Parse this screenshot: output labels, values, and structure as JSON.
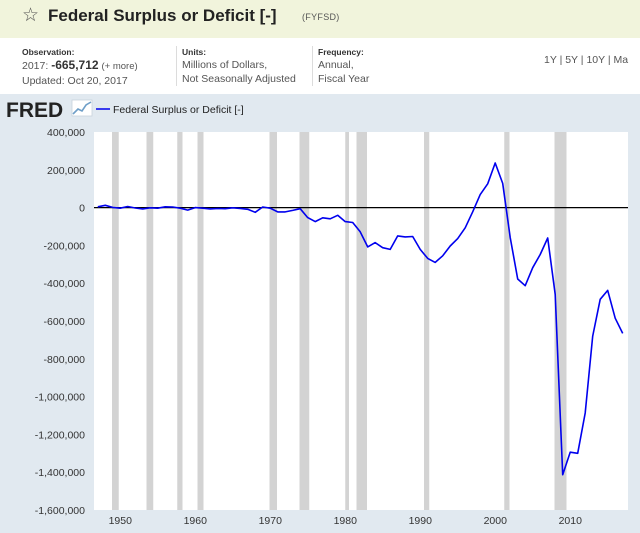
{
  "header": {
    "title": "Federal Surplus or Deficit [-]",
    "series_id": "(FYFSD)"
  },
  "meta": {
    "observation": {
      "label": "Observation:",
      "date": "2017:",
      "value": "-665,712",
      "more": "(+ more)",
      "updated": "Updated: Oct 20, 2017"
    },
    "units": {
      "label": "Units:",
      "line1": "Millions of Dollars,",
      "line2": "Not Seasonally Adjusted"
    },
    "frequency": {
      "label": "Frequency:",
      "line1": "Annual,",
      "line2": "Fiscal Year"
    },
    "ranges": [
      "1Y",
      "5Y",
      "10Y",
      "Ma"
    ]
  },
  "chart": {
    "logo": "FRED",
    "legend_label": "Federal Surplus or Deficit [-]"
  },
  "chart_data": {
    "type": "line",
    "title": "Federal Surplus or Deficit [-]",
    "xlabel": "",
    "ylabel": "",
    "x_range": [
      1946.5,
      2017.7
    ],
    "ylim": [
      -1600000,
      400000
    ],
    "y_ticks": [
      400000,
      200000,
      0,
      -200000,
      -400000,
      -600000,
      -800000,
      -1000000,
      -1200000,
      -1400000,
      -1600000
    ],
    "y_tick_labels": [
      "400,000",
      "200,000",
      "0",
      "-200,000",
      "-400,000",
      "-600,000",
      "-800,000",
      "-1,000,000",
      "-1,200,000",
      "-1,400,000",
      "-1,600,000"
    ],
    "x_ticks": [
      1950,
      1960,
      1970,
      1980,
      1990,
      2000,
      2010
    ],
    "x_tick_labels": [
      "1950",
      "1960",
      "1970",
      "1980",
      "1990",
      "2000",
      "2010"
    ],
    "grid": false,
    "legend_position": "top-left",
    "line_color": "#0000ee",
    "zero_line_color": "#000000",
    "recession_color": "#d3d3d3",
    "recessions": [
      [
        1948.9,
        1949.8
      ],
      [
        1953.5,
        1954.4
      ],
      [
        1957.6,
        1958.3
      ],
      [
        1960.3,
        1961.1
      ],
      [
        1969.9,
        1970.9
      ],
      [
        1973.9,
        1975.2
      ],
      [
        1980.0,
        1980.5
      ],
      [
        1981.5,
        1982.9
      ],
      [
        1990.5,
        1991.2
      ],
      [
        2001.2,
        2001.9
      ],
      [
        2007.9,
        2009.5
      ]
    ],
    "series": [
      {
        "values": [
          [
            1947,
            4000
          ],
          [
            1948,
            12000
          ],
          [
            1949,
            1000
          ],
          [
            1950,
            -3000
          ],
          [
            1951,
            6000
          ],
          [
            1952,
            -2000
          ],
          [
            1953,
            -7000
          ],
          [
            1954,
            -1000
          ],
          [
            1955,
            -3000
          ],
          [
            1956,
            4000
          ],
          [
            1957,
            3000
          ],
          [
            1958,
            -3000
          ],
          [
            1959,
            -13000
          ],
          [
            1960,
            0
          ],
          [
            1961,
            -3000
          ],
          [
            1962,
            -7000
          ],
          [
            1963,
            -5000
          ],
          [
            1964,
            -6000
          ],
          [
            1965,
            -1000
          ],
          [
            1966,
            -4000
          ],
          [
            1967,
            -9000
          ],
          [
            1968,
            -25000
          ],
          [
            1969,
            3000
          ],
          [
            1970,
            -3000
          ],
          [
            1971,
            -23000
          ],
          [
            1972,
            -23000
          ],
          [
            1973,
            -15000
          ],
          [
            1974,
            -6000
          ],
          [
            1975,
            -53000
          ],
          [
            1976,
            -74000
          ],
          [
            1977,
            -54000
          ],
          [
            1978,
            -59000
          ],
          [
            1979,
            -41000
          ],
          [
            1980,
            -74000
          ],
          [
            1981,
            -79000
          ],
          [
            1982,
            -128000
          ],
          [
            1983,
            -208000
          ],
          [
            1984,
            -185000
          ],
          [
            1985,
            -212000
          ],
          [
            1986,
            -221000
          ],
          [
            1987,
            -150000
          ],
          [
            1988,
            -155000
          ],
          [
            1989,
            -153000
          ],
          [
            1990,
            -221000
          ],
          [
            1991,
            -269000
          ],
          [
            1992,
            -290000
          ],
          [
            1993,
            -255000
          ],
          [
            1994,
            -203000
          ],
          [
            1995,
            -164000
          ],
          [
            1996,
            -107000
          ],
          [
            1997,
            -22000
          ],
          [
            1998,
            69000
          ],
          [
            1999,
            126000
          ],
          [
            2000,
            236000
          ],
          [
            2001,
            128000
          ],
          [
            2002,
            -158000
          ],
          [
            2003,
            -378000
          ],
          [
            2004,
            -413000
          ],
          [
            2005,
            -318000
          ],
          [
            2006,
            -248000
          ],
          [
            2007,
            -161000
          ],
          [
            2008,
            -459000
          ],
          [
            2009,
            -1413000
          ],
          [
            2010,
            -1294000
          ],
          [
            2011,
            -1300000
          ],
          [
            2012,
            -1087000
          ],
          [
            2013,
            -680000
          ],
          [
            2014,
            -485000
          ],
          [
            2015,
            -438000
          ],
          [
            2016,
            -585000
          ],
          [
            2017,
            -665712
          ]
        ]
      }
    ]
  }
}
